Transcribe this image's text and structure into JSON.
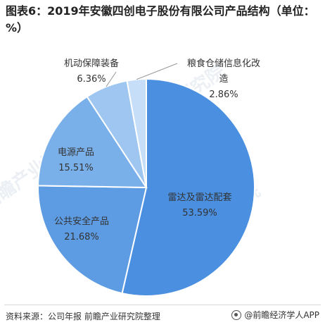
{
  "title": "图表6：2019年安徽四创电子股份有限公司产品结构（单位：%）",
  "source": "资料来源：公司年报 前瞻产业研究院整理",
  "brand": "@前瞻经济学人APP",
  "watermark": "前瞻产业研究院",
  "chart_data": {
    "type": "pie",
    "title": "图表6：2019年安徽四创电子股份有限公司产品结构（单位：%）",
    "unit": "%",
    "slices": [
      {
        "label": "雷达及雷达配套",
        "value": 53.59,
        "value_label": "53.59%",
        "color": "#4a8fe0"
      },
      {
        "label": "公共安全产品",
        "value": 21.68,
        "value_label": "21.68%",
        "color": "#5d9be3"
      },
      {
        "label": "电源产品",
        "value": 15.51,
        "value_label": "15.51%",
        "color": "#7ab0ea"
      },
      {
        "label": "机动保障装备",
        "value": 6.36,
        "value_label": "6.36%",
        "color": "#9ec6f1"
      },
      {
        "label": "粮食仓储信息化改造",
        "value": 2.86,
        "value_label": "2.86%",
        "color": "#c7def8"
      }
    ]
  }
}
